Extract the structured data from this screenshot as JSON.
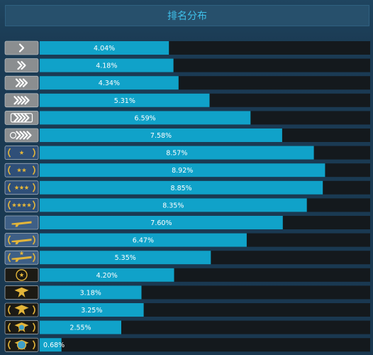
{
  "header": {
    "title": "排名分布"
  },
  "colors": {
    "bar_fill": "#10a2c9",
    "track": "#14191d",
    "silver_badge": "#8b8e90",
    "gold_nova_badge": "#2f4f78",
    "mg_badge": "#3e5f86",
    "elite_badge": "#1c1a14",
    "gold": "#e3b53a"
  },
  "chart_data": {
    "type": "bar",
    "orientation": "horizontal",
    "categories": [
      "silver-1",
      "silver-2",
      "silver-3",
      "silver-4",
      "silver-elite",
      "silver-elite-master",
      "gold-nova-1",
      "gold-nova-2",
      "gold-nova-3",
      "gold-nova-master",
      "master-guardian-1",
      "master-guardian-2",
      "master-guardian-elite",
      "distinguished-master-guardian",
      "legendary-eagle",
      "legendary-eagle-master",
      "supreme-master-first-class",
      "global-elite"
    ],
    "values": [
      4.04,
      4.18,
      4.34,
      5.31,
      6.59,
      7.58,
      8.57,
      8.92,
      8.85,
      8.35,
      7.6,
      6.47,
      5.35,
      4.2,
      3.18,
      3.25,
      2.55,
      0.68
    ],
    "labels": [
      "4.04%",
      "4.18%",
      "4.34%",
      "5.31%",
      "6.59%",
      "7.58%",
      "8.57%",
      "8.92%",
      "8.85%",
      "8.35%",
      "7.60%",
      "6.47%",
      "5.35%",
      "4.20%",
      "3.18%",
      "3.25%",
      "2.55%",
      "0.68%"
    ],
    "xlim": [
      0,
      10.33
    ],
    "unit": "%",
    "grid": false,
    "legend": "none"
  }
}
